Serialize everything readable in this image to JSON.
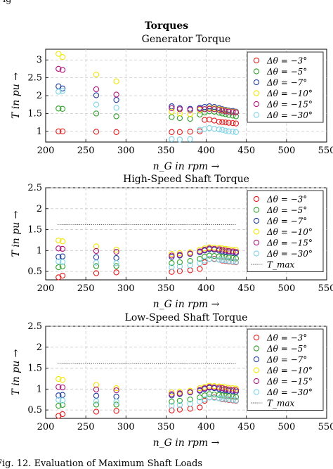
{
  "header_fragment": "ig",
  "supertitle": "Torques",
  "caption": "Fig. 12. Evaluation of Maximum Shaft Loads",
  "colors": [
    "#e31a1c",
    "#33a02c",
    "#1f3aa0",
    "#f2e600",
    "#b0157a",
    "#7fd3e6"
  ],
  "chart_data": [
    {
      "type": "scatter",
      "title": "Generator Torque",
      "xlabel": "n_G in rpm →",
      "ylabel": "T in pu →",
      "xlim": [
        200,
        550
      ],
      "ylim": [
        0.7,
        3.3
      ],
      "xticks": [
        "200",
        "250",
        "300",
        "350",
        "400",
        "450",
        "500",
        "550"
      ],
      "yticks": [
        "1",
        "1.5",
        "2",
        "2.5",
        "3"
      ],
      "ytick_values": [
        1,
        1.5,
        2,
        2.5,
        3
      ],
      "grid": true,
      "legend_position": "top-right",
      "tmax": null,
      "series": [
        {
          "name": "Δθ = −3°",
          "x": [
            216,
            221,
            263,
            288,
            357,
            367,
            380,
            392,
            398,
            404,
            410,
            416,
            420,
            424,
            428,
            433,
            437
          ],
          "y": [
            1.0,
            1.0,
            0.99,
            0.98,
            0.98,
            0.98,
            0.99,
            1.0,
            1.32,
            1.33,
            1.3,
            1.27,
            1.26,
            1.25,
            1.24,
            1.23,
            1.22
          ]
        },
        {
          "name": "Δθ = −5°",
          "x": [
            216,
            221,
            263,
            288,
            357,
            367,
            380,
            392,
            398,
            404,
            410,
            416,
            420,
            424,
            428,
            433,
            437
          ],
          "y": [
            1.64,
            1.63,
            1.5,
            1.42,
            1.4,
            1.37,
            1.35,
            1.47,
            1.53,
            1.56,
            1.55,
            1.52,
            1.5,
            1.48,
            1.46,
            1.44,
            1.42
          ]
        },
        {
          "name": "Δθ = −7°",
          "x": [
            216,
            221,
            263,
            288,
            357,
            367,
            380,
            392,
            398,
            404,
            410,
            416,
            420,
            424,
            428,
            433,
            437
          ],
          "y": [
            2.26,
            2.2,
            2.01,
            1.88,
            1.7,
            1.65,
            1.63,
            1.66,
            1.68,
            1.7,
            1.68,
            1.65,
            1.62,
            1.6,
            1.58,
            1.57,
            1.55
          ]
        },
        {
          "name": "Δθ = −10°",
          "x": [
            216,
            221,
            263,
            288,
            357,
            367,
            380,
            392,
            398,
            404,
            410,
            416,
            420,
            424,
            428,
            433,
            437
          ],
          "y": [
            3.17,
            3.08,
            2.59,
            2.4,
            1.55,
            1.5,
            1.48,
            1.6,
            1.62,
            1.65,
            1.64,
            1.62,
            1.6,
            1.58,
            1.56,
            1.55,
            1.54
          ]
        },
        {
          "name": "Δθ = −15°",
          "x": [
            216,
            221,
            263,
            288,
            357,
            367,
            380,
            392,
            398,
            404,
            410,
            416,
            420,
            424,
            428,
            433,
            437
          ],
          "y": [
            2.75,
            2.72,
            2.18,
            2.03,
            1.65,
            1.62,
            1.6,
            1.63,
            1.62,
            1.63,
            1.62,
            1.6,
            1.58,
            1.56,
            1.55,
            1.54,
            1.53
          ]
        },
        {
          "name": "Δθ = −30°",
          "x": [
            216,
            221,
            263,
            288,
            357,
            367,
            380,
            392,
            398,
            404,
            410,
            416,
            420,
            424,
            428,
            433,
            437
          ],
          "y": [
            2.11,
            2.13,
            1.75,
            1.66,
            0.78,
            0.77,
            0.78,
            1.04,
            1.06,
            1.09,
            1.07,
            1.05,
            1.04,
            1.02,
            1.0,
            0.99,
            0.98
          ]
        }
      ]
    },
    {
      "type": "scatter",
      "title": "High-Speed Shaft Torque",
      "xlabel": "n_G in rpm →",
      "ylabel": "T in pu →",
      "xlim": [
        200,
        550
      ],
      "ylim": [
        0.3,
        2.5
      ],
      "xticks": [
        "200",
        "250",
        "300",
        "350",
        "400",
        "450",
        "500",
        "550"
      ],
      "yticks": [
        "0.5",
        "1",
        "1.5",
        "2",
        "2.5"
      ],
      "ytick_values": [
        0.5,
        1,
        1.5,
        2,
        2.5
      ],
      "grid": true,
      "legend_position": "top-right",
      "tmax": {
        "name": "T_max",
        "value": 1.62,
        "x": [
          215,
          438
        ]
      },
      "series": [
        {
          "name": "Δθ = −3°",
          "x": [
            216,
            221,
            263,
            288,
            357,
            367,
            380,
            392,
            398,
            404,
            410,
            416,
            420,
            424,
            428,
            433,
            437
          ],
          "y": [
            0.36,
            0.4,
            0.46,
            0.48,
            0.49,
            0.51,
            0.53,
            0.56,
            0.72,
            0.8,
            0.8,
            0.78,
            0.76,
            0.75,
            0.74,
            0.73,
            0.72
          ]
        },
        {
          "name": "Δθ = −5°",
          "x": [
            216,
            221,
            263,
            288,
            357,
            367,
            380,
            392,
            398,
            404,
            410,
            416,
            420,
            424,
            428,
            433,
            437
          ],
          "y": [
            0.6,
            0.62,
            0.63,
            0.63,
            0.7,
            0.72,
            0.75,
            0.8,
            0.85,
            0.88,
            0.87,
            0.86,
            0.85,
            0.84,
            0.83,
            0.82,
            0.81
          ]
        },
        {
          "name": "Δθ = −7°",
          "x": [
            216,
            221,
            263,
            288,
            357,
            367,
            380,
            392,
            398,
            404,
            410,
            416,
            420,
            424,
            428,
            433,
            437
          ],
          "y": [
            0.85,
            0.86,
            0.84,
            0.82,
            0.85,
            0.88,
            0.92,
            0.96,
            1.0,
            1.03,
            1.02,
            1.0,
            0.98,
            0.97,
            0.96,
            0.95,
            0.94
          ]
        },
        {
          "name": "Δθ = −10°",
          "x": [
            216,
            221,
            263,
            288,
            357,
            367,
            380,
            392,
            398,
            404,
            410,
            416,
            420,
            424,
            428,
            433,
            437
          ],
          "y": [
            1.24,
            1.22,
            1.1,
            1.02,
            0.92,
            0.94,
            0.96,
            1.02,
            1.05,
            1.08,
            1.07,
            1.06,
            1.05,
            1.04,
            1.03,
            1.02,
            1.01
          ]
        },
        {
          "name": "Δθ = −15°",
          "x": [
            216,
            221,
            263,
            288,
            357,
            367,
            380,
            392,
            398,
            404,
            410,
            416,
            420,
            424,
            428,
            433,
            437
          ],
          "y": [
            1.05,
            1.04,
            0.99,
            0.97,
            0.88,
            0.9,
            0.93,
            0.98,
            1.02,
            1.05,
            1.04,
            1.03,
            1.02,
            1.0,
            0.99,
            0.98,
            0.97
          ]
        },
        {
          "name": "Δθ = −30°",
          "x": [
            216,
            221,
            263,
            288,
            357,
            367,
            380,
            392,
            398,
            404,
            410,
            416,
            420,
            424,
            428,
            433,
            437
          ],
          "y": [
            0.74,
            0.73,
            0.71,
            0.7,
            0.6,
            0.62,
            0.65,
            0.7,
            0.76,
            0.8,
            0.79,
            0.78,
            0.77,
            0.76,
            0.75,
            0.74,
            0.73
          ]
        }
      ]
    },
    {
      "type": "scatter",
      "title": "Low-Speed Shaft Torque",
      "xlabel": "n_G in rpm →",
      "ylabel": "T in pu →",
      "xlim": [
        200,
        550
      ],
      "ylim": [
        0.3,
        2.5
      ],
      "xticks": [
        "200",
        "250",
        "300",
        "350",
        "400",
        "450",
        "500",
        "550"
      ],
      "yticks": [
        "0.5",
        "1",
        "1.5",
        "2",
        "2.5"
      ],
      "ytick_values": [
        0.5,
        1,
        1.5,
        2,
        2.5
      ],
      "grid": true,
      "legend_position": "top-right",
      "tmax": {
        "name": "T_max",
        "value": 1.62,
        "x": [
          215,
          438
        ]
      },
      "series": [
        {
          "name": "Δθ = −3°",
          "x": [
            216,
            221,
            263,
            288,
            357,
            367,
            380,
            392,
            398,
            404,
            410,
            416,
            420,
            424,
            428,
            433,
            437
          ],
          "y": [
            0.36,
            0.4,
            0.46,
            0.48,
            0.49,
            0.51,
            0.53,
            0.56,
            0.72,
            0.8,
            0.8,
            0.78,
            0.76,
            0.75,
            0.74,
            0.73,
            0.72
          ]
        },
        {
          "name": "Δθ = −5°",
          "x": [
            216,
            221,
            263,
            288,
            357,
            367,
            380,
            392,
            398,
            404,
            410,
            416,
            420,
            424,
            428,
            433,
            437
          ],
          "y": [
            0.6,
            0.62,
            0.63,
            0.63,
            0.7,
            0.72,
            0.75,
            0.8,
            0.85,
            0.88,
            0.87,
            0.86,
            0.85,
            0.84,
            0.83,
            0.82,
            0.81
          ]
        },
        {
          "name": "Δθ = −7°",
          "x": [
            216,
            221,
            263,
            288,
            357,
            367,
            380,
            392,
            398,
            404,
            410,
            416,
            420,
            424,
            428,
            433,
            437
          ],
          "y": [
            0.85,
            0.86,
            0.84,
            0.82,
            0.85,
            0.88,
            0.92,
            0.96,
            1.0,
            1.03,
            1.02,
            1.0,
            0.98,
            0.97,
            0.96,
            0.95,
            0.94
          ]
        },
        {
          "name": "Δθ = −10°",
          "x": [
            216,
            221,
            263,
            288,
            357,
            367,
            380,
            392,
            398,
            404,
            410,
            416,
            420,
            424,
            428,
            433,
            437
          ],
          "y": [
            1.24,
            1.22,
            1.1,
            1.02,
            0.92,
            0.94,
            0.96,
            1.02,
            1.05,
            1.08,
            1.07,
            1.06,
            1.05,
            1.04,
            1.03,
            1.02,
            1.01
          ]
        },
        {
          "name": "Δθ = −15°",
          "x": [
            216,
            221,
            263,
            288,
            357,
            367,
            380,
            392,
            398,
            404,
            410,
            416,
            420,
            424,
            428,
            433,
            437
          ],
          "y": [
            1.05,
            1.04,
            0.99,
            0.97,
            0.88,
            0.9,
            0.93,
            0.98,
            1.02,
            1.05,
            1.04,
            1.03,
            1.02,
            1.0,
            0.99,
            0.98,
            0.97
          ]
        },
        {
          "name": "Δθ = −30°",
          "x": [
            216,
            221,
            263,
            288,
            357,
            367,
            380,
            392,
            398,
            404,
            410,
            416,
            420,
            424,
            428,
            433,
            437
          ],
          "y": [
            0.74,
            0.73,
            0.71,
            0.7,
            0.6,
            0.62,
            0.65,
            0.7,
            0.76,
            0.8,
            0.79,
            0.78,
            0.77,
            0.76,
            0.75,
            0.74,
            0.73
          ]
        }
      ]
    }
  ]
}
